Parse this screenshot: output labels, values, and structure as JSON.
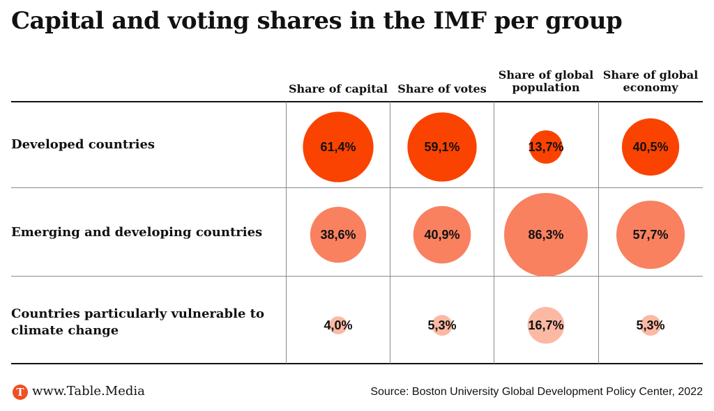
{
  "title": "Capital and voting shares in the IMF per group",
  "columns": [
    "Share of capital",
    "Share of votes",
    "Share of global population",
    "Share of global economy"
  ],
  "rows": [
    "Developed countries",
    "Emerging and developing countries",
    "Countries particularly vulnerable to climate change"
  ],
  "colors": {
    "Developed countries": "#fa4300",
    "Emerging and developing countries": "#f98160",
    "Countries particularly vulnerable to climate change": "#fbb9a4"
  },
  "chart_data": {
    "type": "table",
    "title": "Capital and voting shares in the IMF per group",
    "categories": [
      "Share of capital",
      "Share of votes",
      "Share of global population",
      "Share of global economy"
    ],
    "series": [
      {
        "name": "Developed countries",
        "values": [
          61.4,
          59.1,
          13.7,
          40.5
        ],
        "labels": [
          "61,4%",
          "59,1%",
          "13,7%",
          "40,5%"
        ]
      },
      {
        "name": "Emerging and developing countries",
        "values": [
          38.6,
          40.9,
          86.3,
          57.7
        ],
        "labels": [
          "38,6%",
          "40,9%",
          "86,3%",
          "57,7%"
        ]
      },
      {
        "name": "Countries particularly vulnerable to climate change",
        "values": [
          4.0,
          5.3,
          16.7,
          5.3
        ],
        "labels": [
          "4,0%",
          "5,3%",
          "16,7%",
          "5,3%"
        ]
      }
    ],
    "unit": "%"
  },
  "footer": {
    "logo_letter": "T",
    "brand": "www.Table.Media",
    "source": "Source: Boston University Global Development Policy Center, 2022"
  }
}
